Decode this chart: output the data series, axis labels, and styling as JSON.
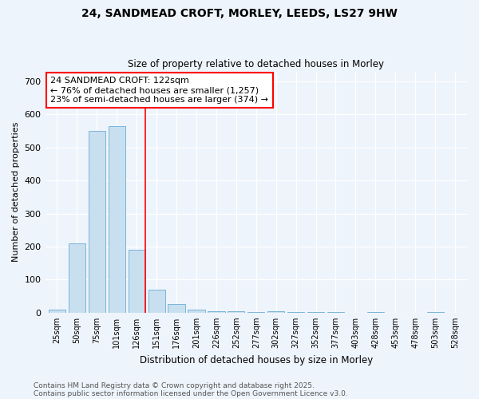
{
  "title1": "24, SANDMEAD CROFT, MORLEY, LEEDS, LS27 9HW",
  "title2": "Size of property relative to detached houses in Morley",
  "xlabel": "Distribution of detached houses by size in Morley",
  "ylabel": "Number of detached properties",
  "categories": [
    "25sqm",
    "50sqm",
    "75sqm",
    "101sqm",
    "126sqm",
    "151sqm",
    "176sqm",
    "201sqm",
    "226sqm",
    "252sqm",
    "277sqm",
    "302sqm",
    "327sqm",
    "352sqm",
    "377sqm",
    "403sqm",
    "428sqm",
    "453sqm",
    "478sqm",
    "503sqm",
    "528sqm"
  ],
  "values": [
    10,
    210,
    550,
    565,
    190,
    70,
    25,
    8,
    5,
    5,
    3,
    5,
    2,
    2,
    1,
    0,
    3,
    0,
    0,
    2,
    0
  ],
  "bar_color": "#c8dff0",
  "bar_edge_color": "#7ab5d8",
  "red_line_x": 4.42,
  "annotation_text": "24 SANDMEAD CROFT: 122sqm\n← 76% of detached houses are smaller (1,257)\n23% of semi-detached houses are larger (374) →",
  "footer1": "Contains HM Land Registry data © Crown copyright and database right 2025.",
  "footer2": "Contains public sector information licensed under the Open Government Licence v3.0.",
  "ylim": [
    0,
    730
  ],
  "background_color": "#eef4fb"
}
